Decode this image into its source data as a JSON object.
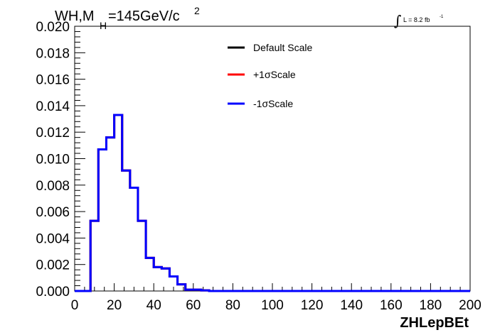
{
  "title": {
    "main": "WH,M",
    "sub": "H",
    "rest": "=145GeV/c",
    "sup": "2"
  },
  "lumi": {
    "integral": "∫",
    "text": "L = 8.2 fb",
    "sup": "-1"
  },
  "colors": {
    "default": "#000000",
    "plus": "#ff0000",
    "minus": "#0000ff"
  },
  "chart_data": {
    "type": "line",
    "xlabel": "ZHLepBEt",
    "ylabel": "",
    "xlim": [
      0,
      200
    ],
    "ylim": [
      0,
      0.02
    ],
    "x_ticks": [
      "0",
      "20",
      "40",
      "60",
      "80",
      "100",
      "120",
      "140",
      "160",
      "180",
      "200"
    ],
    "y_ticks": [
      "0.000",
      "0.002",
      "0.004",
      "0.006",
      "0.008",
      "0.010",
      "0.012",
      "0.014",
      "0.016",
      "0.018",
      "0.020"
    ],
    "bin_edges": [
      0,
      4,
      8,
      12,
      16,
      20,
      24,
      28,
      32,
      36,
      40,
      44,
      48,
      52,
      56,
      60,
      64,
      68,
      72,
      76,
      80,
      84,
      88,
      92,
      96,
      100,
      104,
      108,
      112,
      116,
      120,
      124,
      128,
      132,
      136,
      140,
      144,
      148,
      152,
      156,
      160,
      164,
      168,
      172,
      176,
      180,
      184,
      188,
      192,
      196,
      200
    ],
    "series": [
      {
        "name": "Default Scale",
        "color": "#000000",
        "values": [
          0,
          0,
          0.0053,
          0.0107,
          0.0116,
          0.0133,
          0.0091,
          0.0078,
          0.0053,
          0.0025,
          0.0018,
          0.0017,
          0.0011,
          0.0005,
          0.0001,
          0.0001,
          5e-05,
          0,
          0,
          0,
          0,
          0,
          0,
          0,
          0,
          0,
          0,
          0,
          0,
          0,
          0,
          0,
          0,
          0,
          0,
          0,
          0,
          0,
          0,
          0,
          0,
          0,
          0,
          0,
          0,
          0,
          0,
          0,
          0,
          0
        ]
      },
      {
        "name": "+1σScale",
        "color": "#ff0000",
        "values": [
          0,
          0,
          0.0053,
          0.0107,
          0.0116,
          0.0133,
          0.0091,
          0.0078,
          0.0053,
          0.0025,
          0.0018,
          0.0017,
          0.0011,
          0.0005,
          0.0001,
          0.0001,
          5e-05,
          0,
          0,
          0,
          0,
          0,
          0,
          0,
          0,
          0,
          0,
          0,
          0,
          0,
          0,
          0,
          0,
          0,
          0,
          0,
          0,
          0,
          0,
          0,
          0,
          0,
          0,
          0,
          0,
          0,
          0,
          0,
          0,
          0
        ]
      },
      {
        "name": "-1σScale",
        "color": "#0000ff",
        "values": [
          0,
          0,
          0.0053,
          0.0107,
          0.0116,
          0.0133,
          0.0091,
          0.0078,
          0.0053,
          0.0025,
          0.0018,
          0.0017,
          0.0011,
          0.0005,
          0.0001,
          0.0001,
          5e-05,
          0,
          0,
          0,
          0,
          0,
          0,
          0,
          0,
          0,
          0,
          0,
          0,
          0,
          0,
          0,
          0,
          0,
          0,
          0,
          0,
          0,
          0,
          0,
          0,
          0,
          0,
          0,
          0,
          0,
          0,
          0,
          0,
          0
        ]
      }
    ],
    "legend": {
      "placement": "top-center",
      "entries": [
        "Default Scale",
        "+1σScale",
        "-1σScale"
      ]
    },
    "grid": false
  }
}
